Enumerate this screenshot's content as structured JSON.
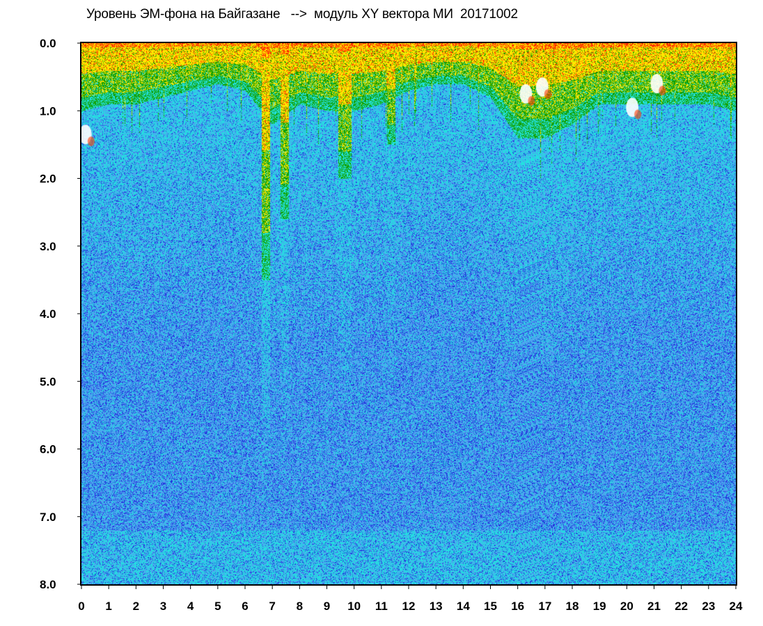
{
  "chart_data": {
    "type": "heatmap",
    "title": "Уровень ЭМ-фона на Байгазане   -->  модуль XY вектора МИ  20171002",
    "xlabel": "",
    "ylabel": "",
    "x_ticks": [
      "0",
      "1",
      "2",
      "3",
      "4",
      "5",
      "6",
      "7",
      "8",
      "9",
      "10",
      "11",
      "12",
      "13",
      "14",
      "15",
      "16",
      "17",
      "18",
      "19",
      "20",
      "21",
      "22",
      "23",
      "24"
    ],
    "y_ticks": [
      "0.0",
      "1.0",
      "2.0",
      "3.0",
      "4.0",
      "5.0",
      "6.0",
      "7.0",
      "8.0"
    ],
    "xlim": [
      0,
      24
    ],
    "ylim": [
      0,
      8
    ],
    "y_axis_inverted": true,
    "grid": false,
    "legend": "none",
    "colormap": [
      "#ffffff",
      "#ff2a00",
      "#ffe600",
      "#13a000",
      "#22e0e0",
      "#4fa0f0",
      "#2233dd"
    ],
    "high_activity_bands_hours": [
      {
        "x": [
          6.6,
          6.9
        ],
        "depth": 3.5
      },
      {
        "x": [
          7.3,
          7.6
        ],
        "depth": 2.6
      },
      {
        "x": [
          9.4,
          9.9
        ],
        "depth": 2.0
      },
      {
        "x": [
          11.2,
          11.5
        ],
        "depth": 1.5
      }
    ],
    "surface_activity_depth_by_hour": [
      [
        0,
        1.0
      ],
      [
        1,
        0.9
      ],
      [
        2,
        0.9
      ],
      [
        3,
        0.8
      ],
      [
        4,
        0.7
      ],
      [
        5,
        0.6
      ],
      [
        6,
        0.7
      ],
      [
        7,
        1.2
      ],
      [
        8,
        0.9
      ],
      [
        9,
        1.0
      ],
      [
        10,
        1.0
      ],
      [
        11,
        0.9
      ],
      [
        12,
        0.7
      ],
      [
        13,
        0.6
      ],
      [
        14,
        0.6
      ],
      [
        15,
        0.8
      ],
      [
        16,
        1.4
      ],
      [
        17,
        1.4
      ],
      [
        18,
        1.2
      ],
      [
        19,
        0.9
      ],
      [
        20,
        0.9
      ],
      [
        21,
        0.9
      ],
      [
        22,
        0.9
      ],
      [
        23,
        0.9
      ],
      [
        24,
        1.0
      ]
    ],
    "white_patches": [
      {
        "x": 0.15,
        "y": 1.35
      },
      {
        "x": 16.3,
        "y": 0.75
      },
      {
        "x": 16.9,
        "y": 0.65
      },
      {
        "x": 20.2,
        "y": 0.95
      },
      {
        "x": 21.1,
        "y": 0.6
      }
    ]
  }
}
